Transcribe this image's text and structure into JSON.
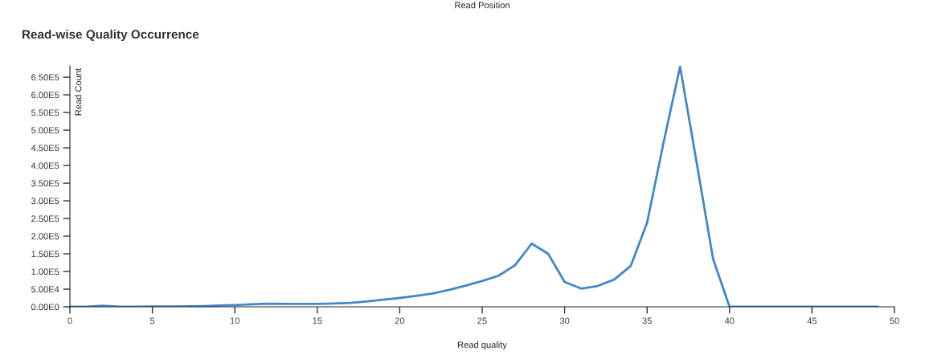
{
  "chart_data": {
    "type": "line",
    "title": "Read-wise Quality Occurrence",
    "xlabel": "Read quality",
    "ylabel": "Read Count",
    "annotations": [
      "Read Position"
    ],
    "x": [
      0,
      1,
      2,
      3,
      4,
      5,
      6,
      7,
      8,
      9,
      10,
      11,
      12,
      13,
      14,
      15,
      16,
      17,
      18,
      19,
      20,
      21,
      22,
      23,
      24,
      25,
      26,
      27,
      28,
      29,
      30,
      31,
      32,
      33,
      34,
      35,
      36,
      37,
      38,
      39,
      40,
      41,
      42,
      43,
      44,
      45,
      46,
      47,
      48,
      49
    ],
    "series": [
      {
        "color": "#3f88c9",
        "values": [
          0,
          0,
          3000,
          0,
          500,
          1000,
          1000,
          1500,
          2000,
          3500,
          5000,
          7000,
          9000,
          8000,
          8000,
          8000,
          9500,
          11000,
          15000,
          20000,
          25000,
          31000,
          38000,
          48000,
          60000,
          73000,
          88000,
          118000,
          179000,
          150000,
          70500,
          51600,
          59000,
          77000,
          115000,
          238000,
          465000,
          680000,
          410000,
          136000,
          0,
          0,
          0,
          0,
          0,
          0,
          0,
          0,
          0,
          0
        ]
      }
    ],
    "xlim": [
      0,
      50
    ],
    "xticks": [
      0,
      5,
      10,
      15,
      20,
      25,
      30,
      35,
      40,
      45,
      50
    ],
    "ylim": [
      0,
      682000
    ],
    "yticks": [
      {
        "value": 0,
        "label": "0.00E0"
      },
      {
        "value": 50000,
        "label": "5.00E4"
      },
      {
        "value": 100000,
        "label": "1.00E5"
      },
      {
        "value": 150000,
        "label": "1.50E5"
      },
      {
        "value": 200000,
        "label": "2.00E5"
      },
      {
        "value": 250000,
        "label": "2.50E5"
      },
      {
        "value": 300000,
        "label": "3.00E5"
      },
      {
        "value": 350000,
        "label": "3.50E5"
      },
      {
        "value": 400000,
        "label": "4.00E5"
      },
      {
        "value": 450000,
        "label": "4.50E5"
      },
      {
        "value": 500000,
        "label": "5.00E5"
      },
      {
        "value": 550000,
        "label": "5.50E5"
      },
      {
        "value": 600000,
        "label": "6.00E5"
      },
      {
        "value": 650000,
        "label": "6.50E5"
      }
    ],
    "grid": false,
    "legend": false,
    "marker": "none",
    "line_style": "solid"
  }
}
